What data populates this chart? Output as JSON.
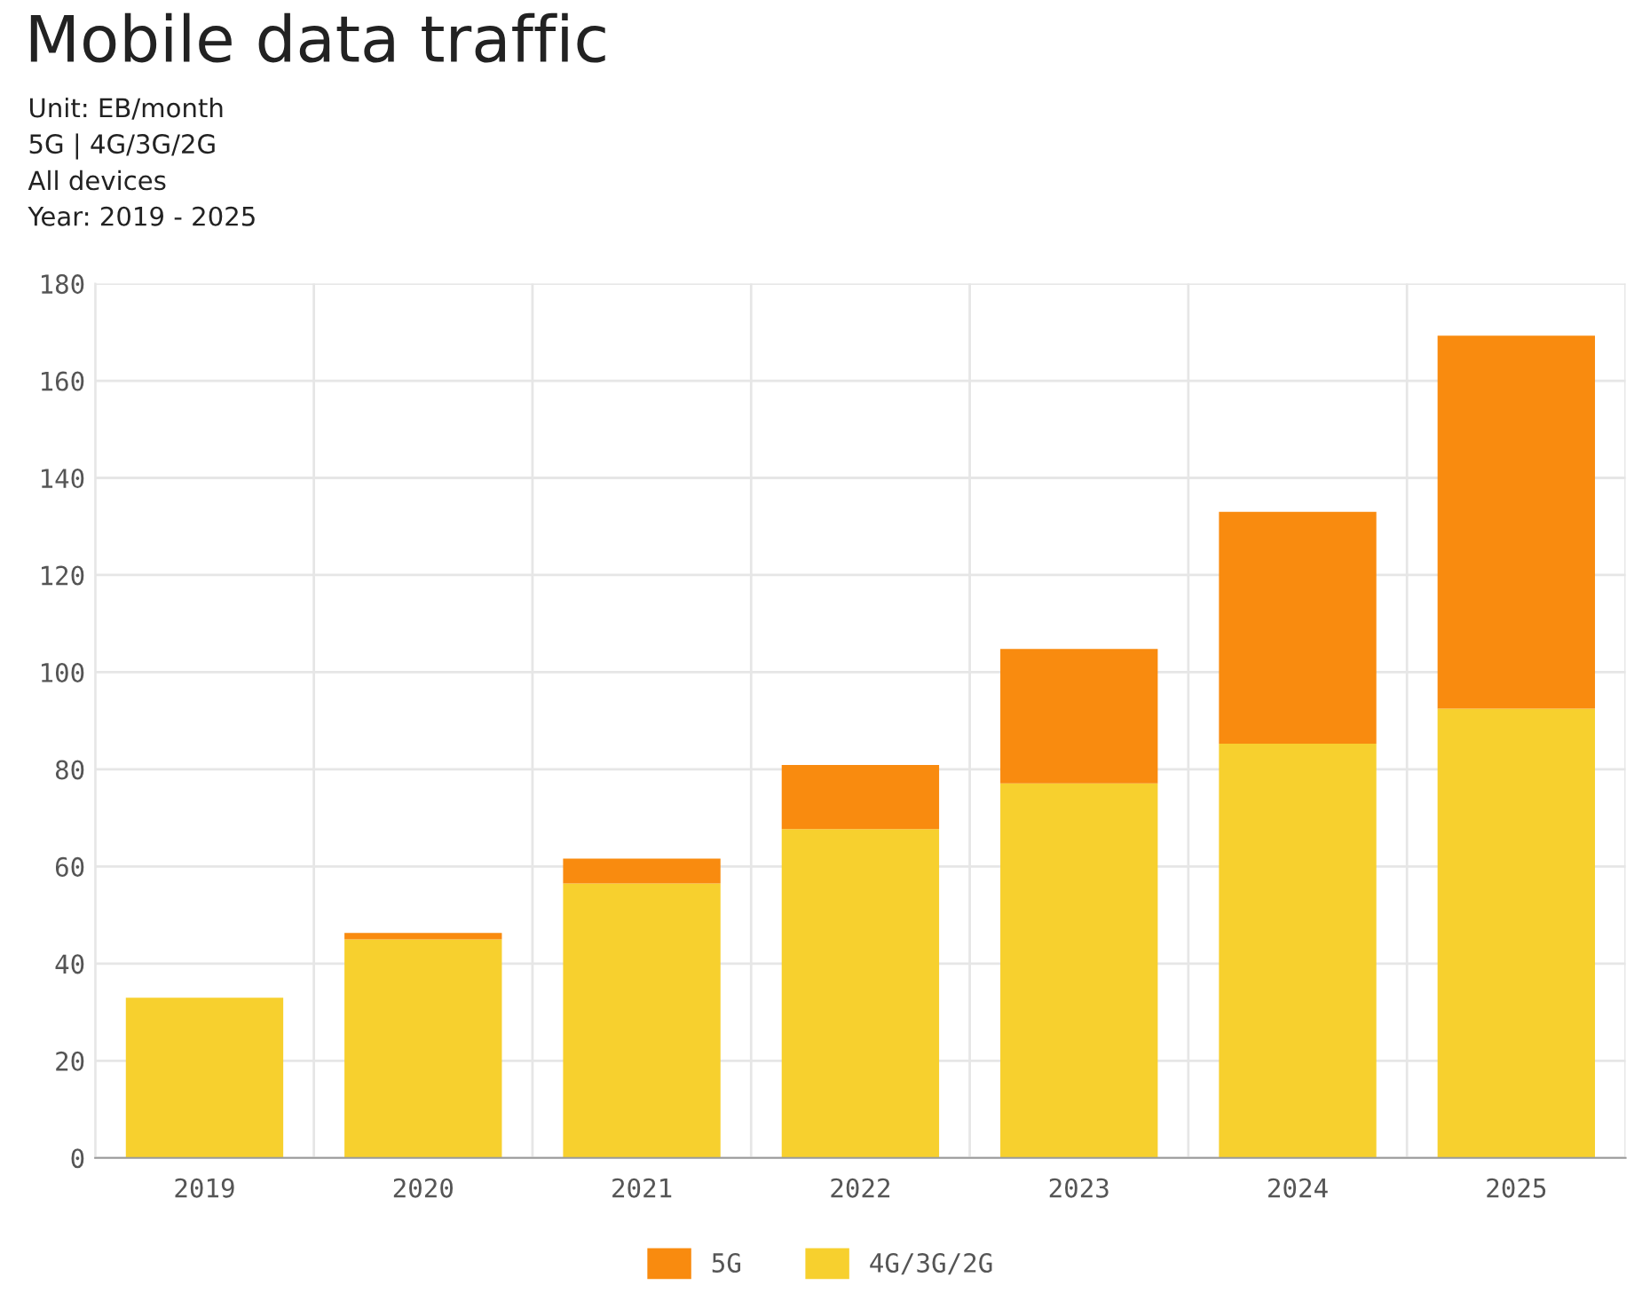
{
  "chart_data": {
    "type": "bar",
    "title": "Mobile data traffic",
    "subtitle": "Unit: EB/month\n5G | 4G/3G/2G\nAll devices\nYear: 2019 - 2025",
    "categories": [
      "2019",
      "2020",
      "2021",
      "2022",
      "2023",
      "2024",
      "2025"
    ],
    "stacked": true,
    "series": [
      {
        "name": "4G/3G/2G",
        "color": "#f7d02e",
        "values": [
          33,
          45,
          56.5,
          67.7,
          77.1,
          85.3,
          92.5
        ]
      },
      {
        "name": "5G",
        "color": "#f98b0f",
        "values": [
          0,
          1.3,
          5.1,
          13.2,
          27.7,
          47.7,
          76.8
        ]
      }
    ],
    "ylim": [
      0,
      180
    ],
    "yticks": [
      0,
      20,
      40,
      60,
      80,
      100,
      120,
      140,
      160,
      180
    ],
    "grid": true,
    "legend": "bottom"
  }
}
